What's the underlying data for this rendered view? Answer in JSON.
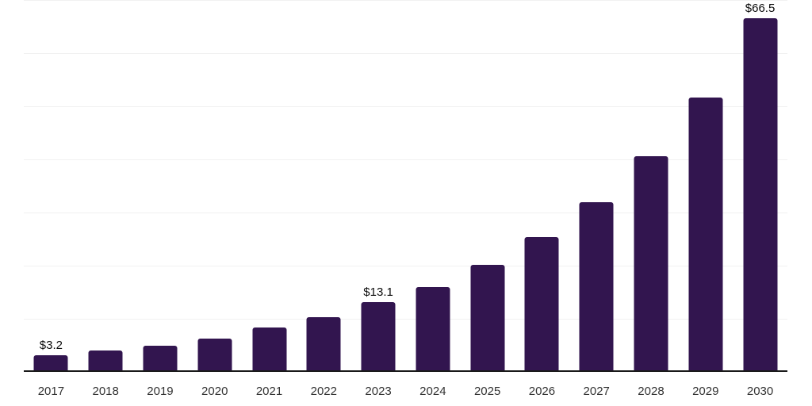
{
  "chart_data": {
    "type": "bar",
    "title": "",
    "xlabel": "",
    "ylabel": "",
    "categories": [
      "2017",
      "2018",
      "2019",
      "2020",
      "2021",
      "2022",
      "2023",
      "2024",
      "2025",
      "2026",
      "2027",
      "2028",
      "2029",
      "2030"
    ],
    "values": [
      3.2,
      4.0,
      4.9,
      6.3,
      8.3,
      10.3,
      13.1,
      16.0,
      20.1,
      25.4,
      31.9,
      40.6,
      51.6,
      66.5
    ],
    "data_labels": [
      "$3.2",
      "",
      "",
      "",
      "",
      "",
      "$13.1",
      "",
      "",
      "",
      "",
      "",
      "",
      "$66.5"
    ],
    "ylim": [
      0,
      70
    ],
    "gridline_interval": 10,
    "grid": true,
    "legend": false,
    "y_axis_tick_labels": [],
    "colors": {
      "bar": "#32154f",
      "gridline": "#f1f1f1",
      "axis_line": "#1a1a1a",
      "x_tick_label": "#333333",
      "data_label": "#0d0d0d",
      "background": "#ffffff"
    }
  }
}
